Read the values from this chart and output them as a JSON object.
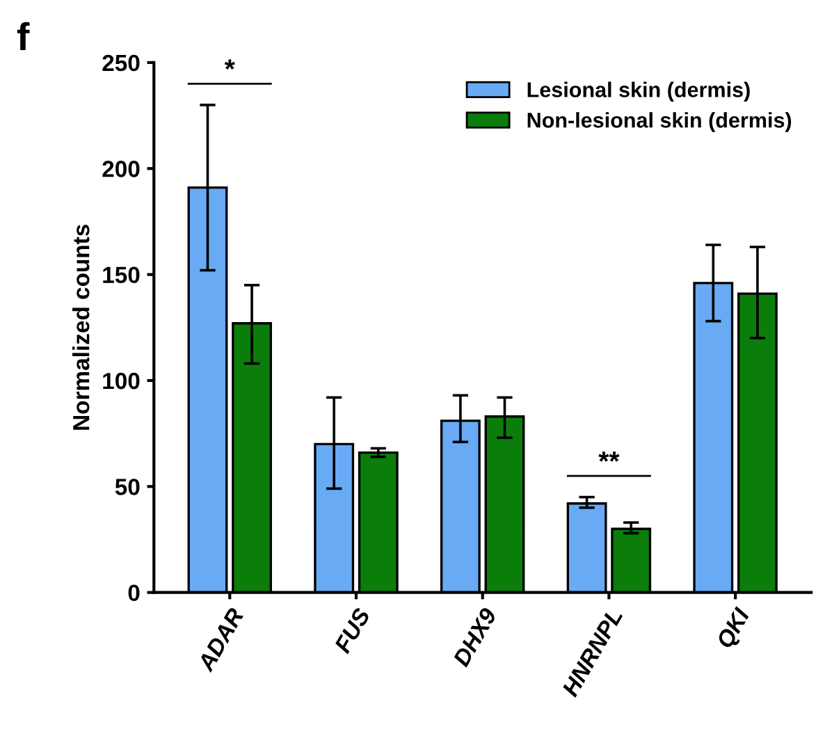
{
  "chart_data": {
    "type": "bar",
    "ylabel": "Normalized counts",
    "categories": [
      "ADAR",
      "FUS",
      "DHX9",
      "HNRNPL",
      "QKI"
    ],
    "series": [
      {
        "name": "Lesional skin (dermis)",
        "color": "#69aaf5",
        "values": [
          191,
          70,
          81,
          42,
          146
        ],
        "errors": [
          [
            152,
            230
          ],
          [
            49,
            92
          ],
          [
            71,
            93
          ],
          [
            40,
            45
          ],
          [
            128,
            164
          ]
        ]
      },
      {
        "name": "Non-lesional skin (dermis)",
        "color": "#0a7d0a",
        "values": [
          127,
          66,
          83,
          30,
          141
        ],
        "errors": [
          [
            108,
            145
          ],
          [
            64,
            68
          ],
          [
            73,
            92
          ],
          [
            28,
            33
          ],
          [
            120,
            163
          ]
        ]
      }
    ],
    "ylim": [
      0,
      250
    ],
    "yticks": [
      0,
      50,
      100,
      150,
      200,
      250
    ],
    "grid": false,
    "legend": "top right",
    "annotations": [
      "f",
      "*",
      "**"
    ]
  }
}
